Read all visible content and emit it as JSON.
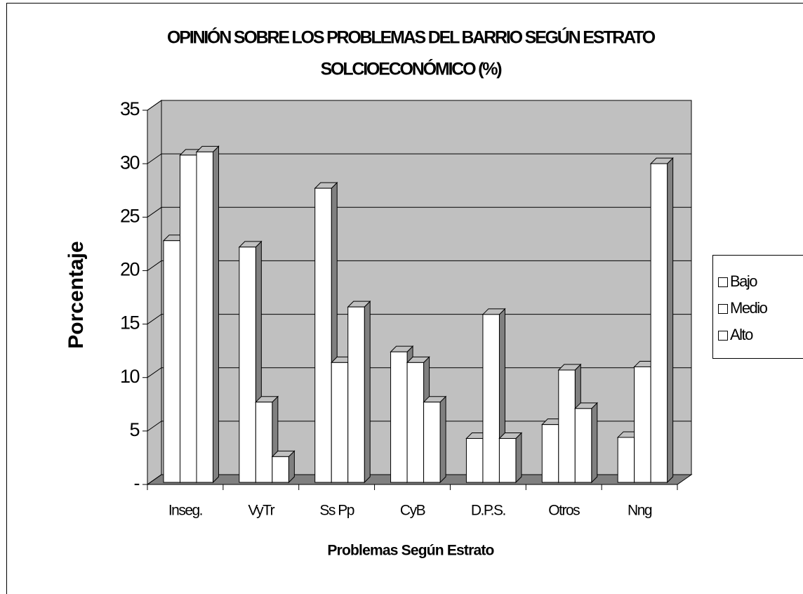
{
  "chart_data": {
    "type": "bar3d",
    "title": [
      "OPINIÓN SOBRE LOS PROBLEMAS DEL BARRIO SEGÚN ESTRATO",
      "SOLCIOECONÓMICO (%)"
    ],
    "x_label": "Problemas Según Estrato",
    "y_label": "Porcentaje",
    "categories": [
      "Inseg.",
      "VyTr",
      "Ss Pp",
      "CyB",
      "D.P.S.",
      "Otros",
      "Nng"
    ],
    "series": [
      {
        "name": "Bajo",
        "color": "#ffffff",
        "values": [
          23,
          22.4,
          27.9,
          12.6,
          4.5,
          5.8,
          4.6
        ]
      },
      {
        "name": "Medio",
        "color": "#ffffff",
        "values": [
          31,
          7.9,
          11.6,
          11.6,
          16.1,
          10.9,
          11.2
        ]
      },
      {
        "name": "Alto",
        "color": "#ffffff",
        "values": [
          31.3,
          2.8,
          16.8,
          7.9,
          4.5,
          7.3,
          30.2
        ]
      }
    ],
    "ylim": [
      0,
      35
    ],
    "yticks": [
      {
        "value": 0,
        "label": "-"
      },
      5,
      10,
      15,
      20,
      25,
      30,
      35
    ],
    "grid": true,
    "legend": "right"
  }
}
